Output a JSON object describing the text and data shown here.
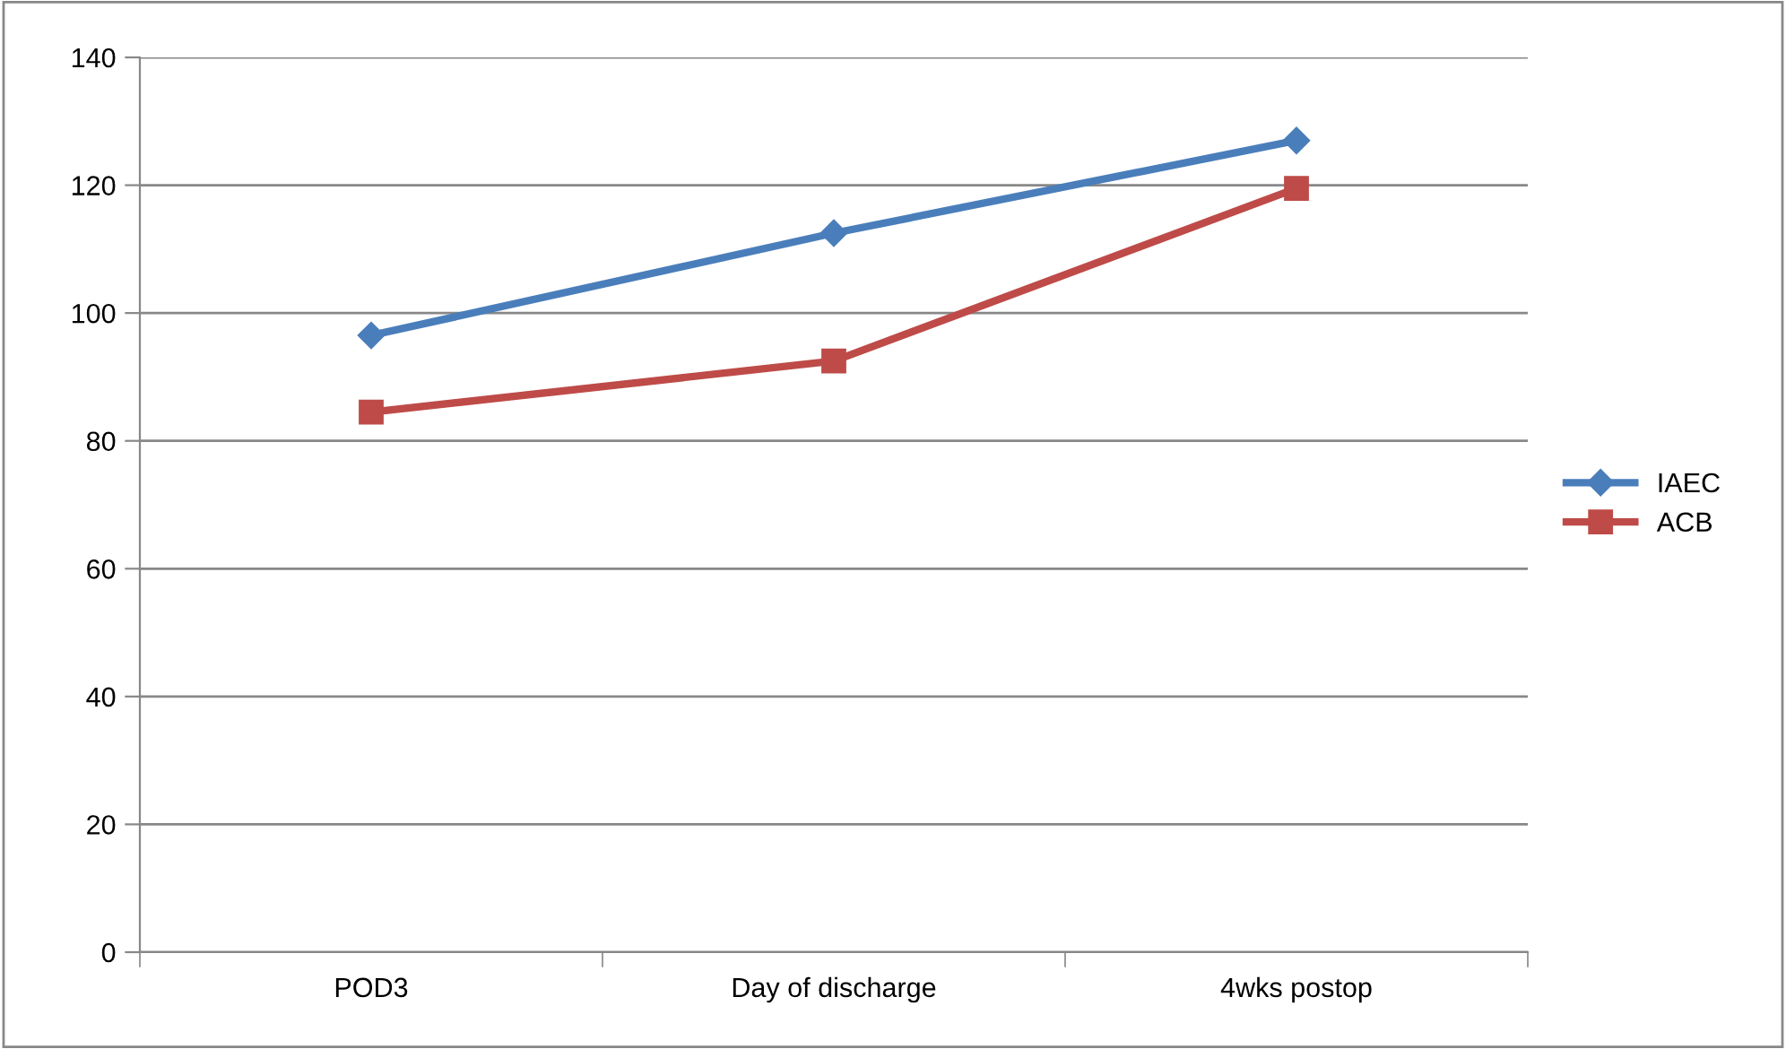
{
  "chart_data": {
    "type": "line",
    "categories": [
      "POD3",
      "Day of discharge",
      "4wks postop"
    ],
    "series": [
      {
        "name": "IAEC",
        "color": "#4a7ebb",
        "values": [
          96.5,
          112.5,
          127
        ],
        "marker": "diamond"
      },
      {
        "name": "ACB",
        "color": "#be4b48",
        "values": [
          84.5,
          92.5,
          119.5
        ],
        "marker": "square"
      }
    ],
    "ylim": [
      0,
      140
    ],
    "yticks": [
      0,
      20,
      40,
      60,
      80,
      100,
      120,
      140
    ],
    "grid": "y",
    "legend": "right",
    "line_style": "solid"
  }
}
